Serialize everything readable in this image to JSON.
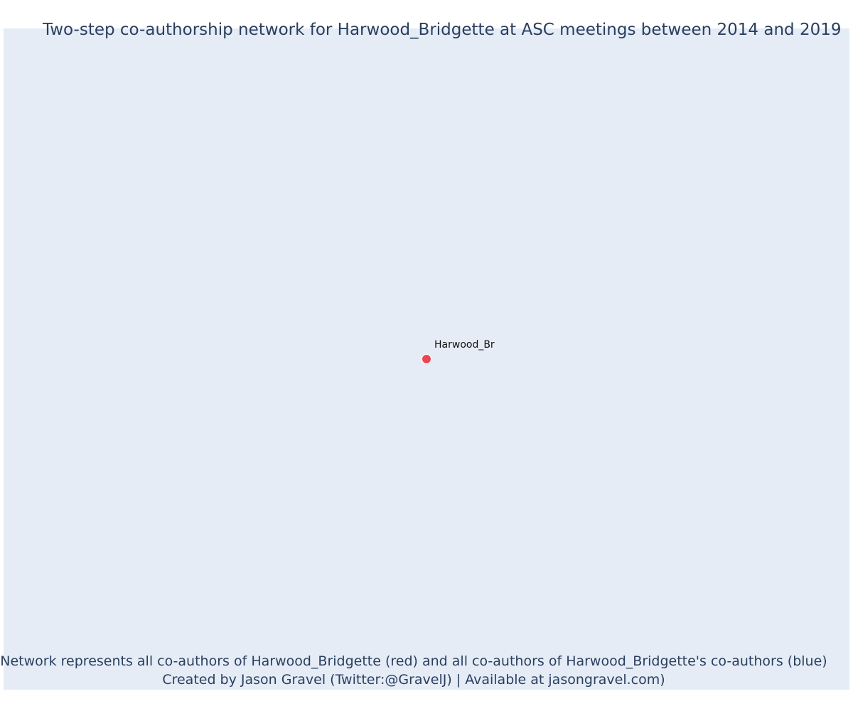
{
  "title": "Two-step co-authorship network for Harwood_Bridgette at ASC meetings between 2014 and 2019",
  "caption": {
    "line1": "Network represents all co-authors of Harwood_Bridgette (red) and all co-authors of Harwood_Bridgette's co-authors (blue)",
    "line2": "Created by Jason Gravel (Twitter:@GravelJ) | Available at jasongravel.com)"
  },
  "colors": {
    "plot_background": "#e5ecf6",
    "text": "#2a3f5f",
    "focal_node": "#ef434f"
  },
  "network": {
    "nodes": [
      {
        "label": "Harwood_Br",
        "role": "focal",
        "color": "#ef434f"
      }
    ],
    "edges": []
  }
}
